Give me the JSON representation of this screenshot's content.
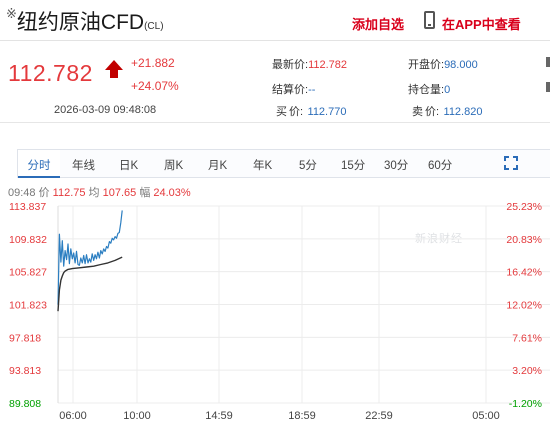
{
  "header": {
    "prefix": "※",
    "title": "纽约原油CFD",
    "code": "(CL)",
    "follow_label": "添加自选",
    "app_label": "在APP中查看"
  },
  "quote": {
    "price": "112.782",
    "change": "+21.882",
    "change_pct": "+24.07%",
    "timestamp": "2026-03-09 09:48:08",
    "latest_label": "最新价:",
    "latest_value": "112.782",
    "settle_label": "结算价:",
    "settle_value": "--",
    "buy_label": "买",
    "buy_suffix": "价:",
    "buy_value": "112.770",
    "open_label": "开盘价:",
    "open_value": "98.000",
    "oi_label": "持仓量:",
    "oi_value": "0",
    "sell_label": "卖",
    "sell_suffix": "价:",
    "sell_value": "112.820"
  },
  "tabs": [
    "分时",
    "年线",
    "日K",
    "周K",
    "月K",
    "年K",
    "5分",
    "15分",
    "30分",
    "60分"
  ],
  "infobar": {
    "time": "09:48",
    "price_label": "价",
    "price": "112.75",
    "avg_label": "均",
    "avg": "107.65",
    "amp_label": "幅",
    "amp": "24.03%"
  },
  "watermark": "新浪财经",
  "colors": {
    "up": "#e4393c",
    "price_line": "#2b7ec1",
    "avg_line": "#333333",
    "base_level": "#00a000",
    "accent": "#2b6cb8"
  },
  "chart_data": {
    "type": "line",
    "x_ticks": [
      "06:00",
      "10:00",
      "14:59",
      "18:59",
      "22:59",
      "05:00"
    ],
    "y_ticks_left": [
      "113.837",
      "109.832",
      "105.827",
      "101.823",
      "97.818",
      "93.813",
      "89.808"
    ],
    "y_ticks_right": [
      "25.23%",
      "20.83%",
      "16.42%",
      "12.02%",
      "7.61%",
      "3.20%",
      "-1.20%"
    ],
    "ylim": [
      89.808,
      113.837
    ],
    "grid": true,
    "series": [
      {
        "values": [
          [
            0,
            101.8
          ],
          [
            1,
            110.4
          ],
          [
            2,
            107.0
          ],
          [
            3,
            109.6
          ],
          [
            4,
            106.5
          ],
          [
            5,
            108.4
          ],
          [
            6,
            107.3
          ],
          [
            7,
            109.2
          ],
          [
            8,
            106.8
          ],
          [
            9,
            108.6
          ],
          [
            10,
            107.4
          ],
          [
            11,
            108.1
          ],
          [
            12,
            106.9
          ],
          [
            13,
            108.3
          ],
          [
            14,
            106.7
          ],
          [
            15,
            106.6
          ],
          [
            16,
            107.5
          ],
          [
            17,
            106.9
          ],
          [
            18,
            107.8
          ],
          [
            19,
            106.8
          ],
          [
            20,
            107.9
          ],
          [
            21,
            106.9
          ],
          [
            22,
            107.4
          ],
          [
            23,
            107.0
          ],
          [
            24,
            108.0
          ],
          [
            25,
            107.2
          ],
          [
            26,
            107.9
          ],
          [
            27,
            107.4
          ],
          [
            28,
            108.2
          ],
          [
            29,
            107.5
          ],
          [
            30,
            108.4
          ],
          [
            31,
            108.0
          ],
          [
            32,
            108.6
          ],
          [
            33,
            108.3
          ],
          [
            34,
            108.9
          ],
          [
            35,
            108.7
          ],
          [
            36,
            109.5
          ],
          [
            37,
            109.3
          ],
          [
            38,
            109.9
          ],
          [
            39,
            109.7
          ],
          [
            40,
            110.1
          ],
          [
            41,
            109.9
          ],
          [
            42,
            110.5
          ],
          [
            43,
            110.6
          ],
          [
            44,
            111.8
          ],
          [
            45,
            113.3
          ]
        ]
      },
      {
        "values": [
          [
            0,
            101.0
          ],
          [
            1,
            103.6
          ],
          [
            2,
            104.8
          ],
          [
            3,
            105.3
          ],
          [
            4,
            105.7
          ],
          [
            5,
            105.9
          ],
          [
            7,
            106.1
          ],
          [
            10,
            106.2
          ],
          [
            15,
            106.3
          ],
          [
            20,
            106.4
          ],
          [
            25,
            106.5
          ],
          [
            30,
            106.7
          ],
          [
            35,
            106.9
          ],
          [
            40,
            107.2
          ],
          [
            45,
            107.6
          ]
        ]
      }
    ]
  }
}
